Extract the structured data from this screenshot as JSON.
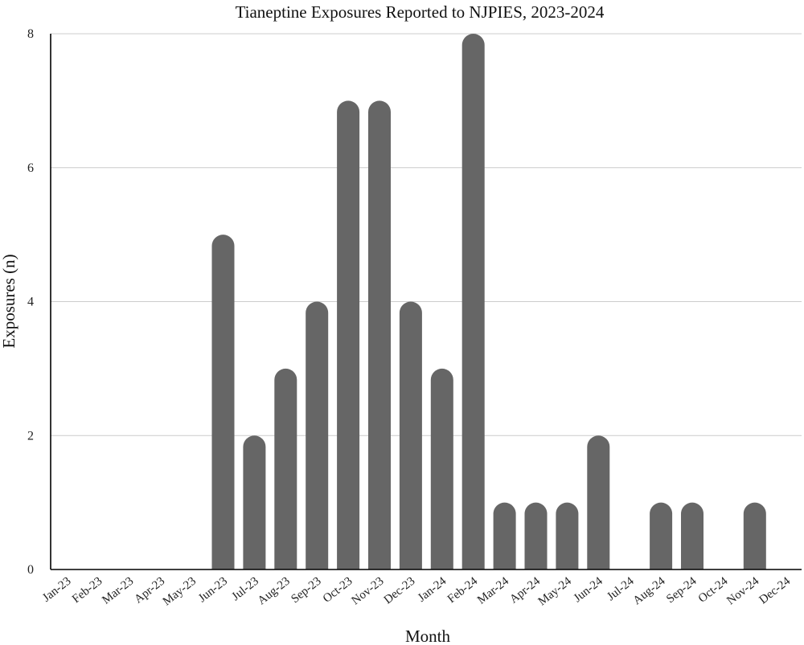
{
  "chart_data": {
    "type": "bar",
    "title": "Tianeptine Exposures Reported to NJPIES, 2023-2024",
    "xlabel": "Month",
    "ylabel": "Exposures (n)",
    "categories": [
      "Jan-23",
      "Feb-23",
      "Mar-23",
      "Apr-23",
      "May-23",
      "Jun-23",
      "Jul-23",
      "Aug-23",
      "Sep-23",
      "Oct-23",
      "Nov-23",
      "Dec-23",
      "Jan-24",
      "Feb-24",
      "Mar-24",
      "Apr-24",
      "May-24",
      "Jun-24",
      "Jul-24",
      "Aug-24",
      "Sep-24",
      "Oct-24",
      "Nov-24",
      "Dec-24"
    ],
    "values": [
      0,
      0,
      0,
      0,
      0,
      5,
      2,
      3,
      4,
      7,
      7,
      4,
      3,
      8,
      1,
      1,
      1,
      2,
      0,
      1,
      1,
      0,
      1,
      0
    ],
    "ylim": [
      0,
      8
    ],
    "yticks": [
      0,
      2,
      4,
      6,
      8
    ],
    "grid": true,
    "bar_color": "#666666"
  }
}
